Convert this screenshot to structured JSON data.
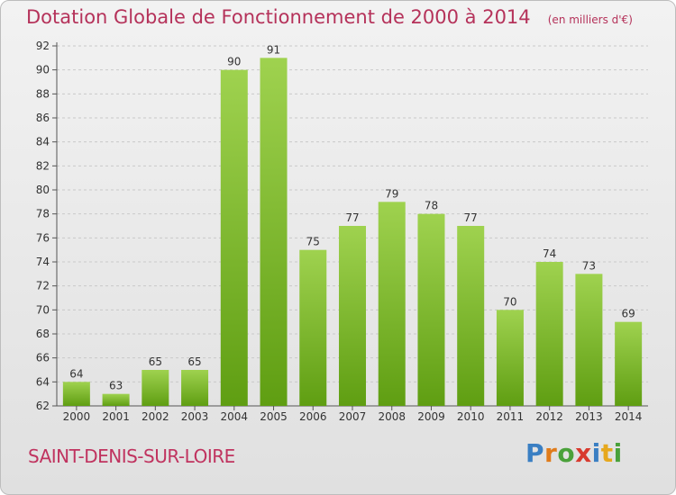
{
  "header": {
    "title": "Dotation Globale de Fonctionnement de 2000 à 2014",
    "unit": "(en milliers d'€)"
  },
  "footer": {
    "place": "SAINT-DENIS-SUR-LOIRE",
    "logo_text": "Proxiti"
  },
  "colors": {
    "title": "#b5325a",
    "bar_top": "#9fd24f",
    "bar_bottom": "#5f9e12",
    "grid": "#c9c9c9"
  },
  "chart_data": {
    "type": "bar",
    "title": "Dotation Globale de Fonctionnement de 2000 à 2014",
    "subtitle": "(en milliers d'€)",
    "xlabel": "",
    "ylabel": "",
    "categories": [
      "2000",
      "2001",
      "2002",
      "2003",
      "2004",
      "2005",
      "2006",
      "2007",
      "2008",
      "2009",
      "2010",
      "2011",
      "2012",
      "2013",
      "2014"
    ],
    "values": [
      64,
      63,
      65,
      65,
      90,
      91,
      75,
      77,
      79,
      78,
      77,
      70,
      74,
      73,
      69
    ],
    "ylim": [
      62,
      92
    ],
    "yticks": [
      62,
      64,
      66,
      68,
      70,
      72,
      74,
      76,
      78,
      80,
      82,
      84,
      86,
      88,
      90,
      92
    ],
    "grid": "horizontal dashed",
    "data_labels": true,
    "legend": "none"
  }
}
